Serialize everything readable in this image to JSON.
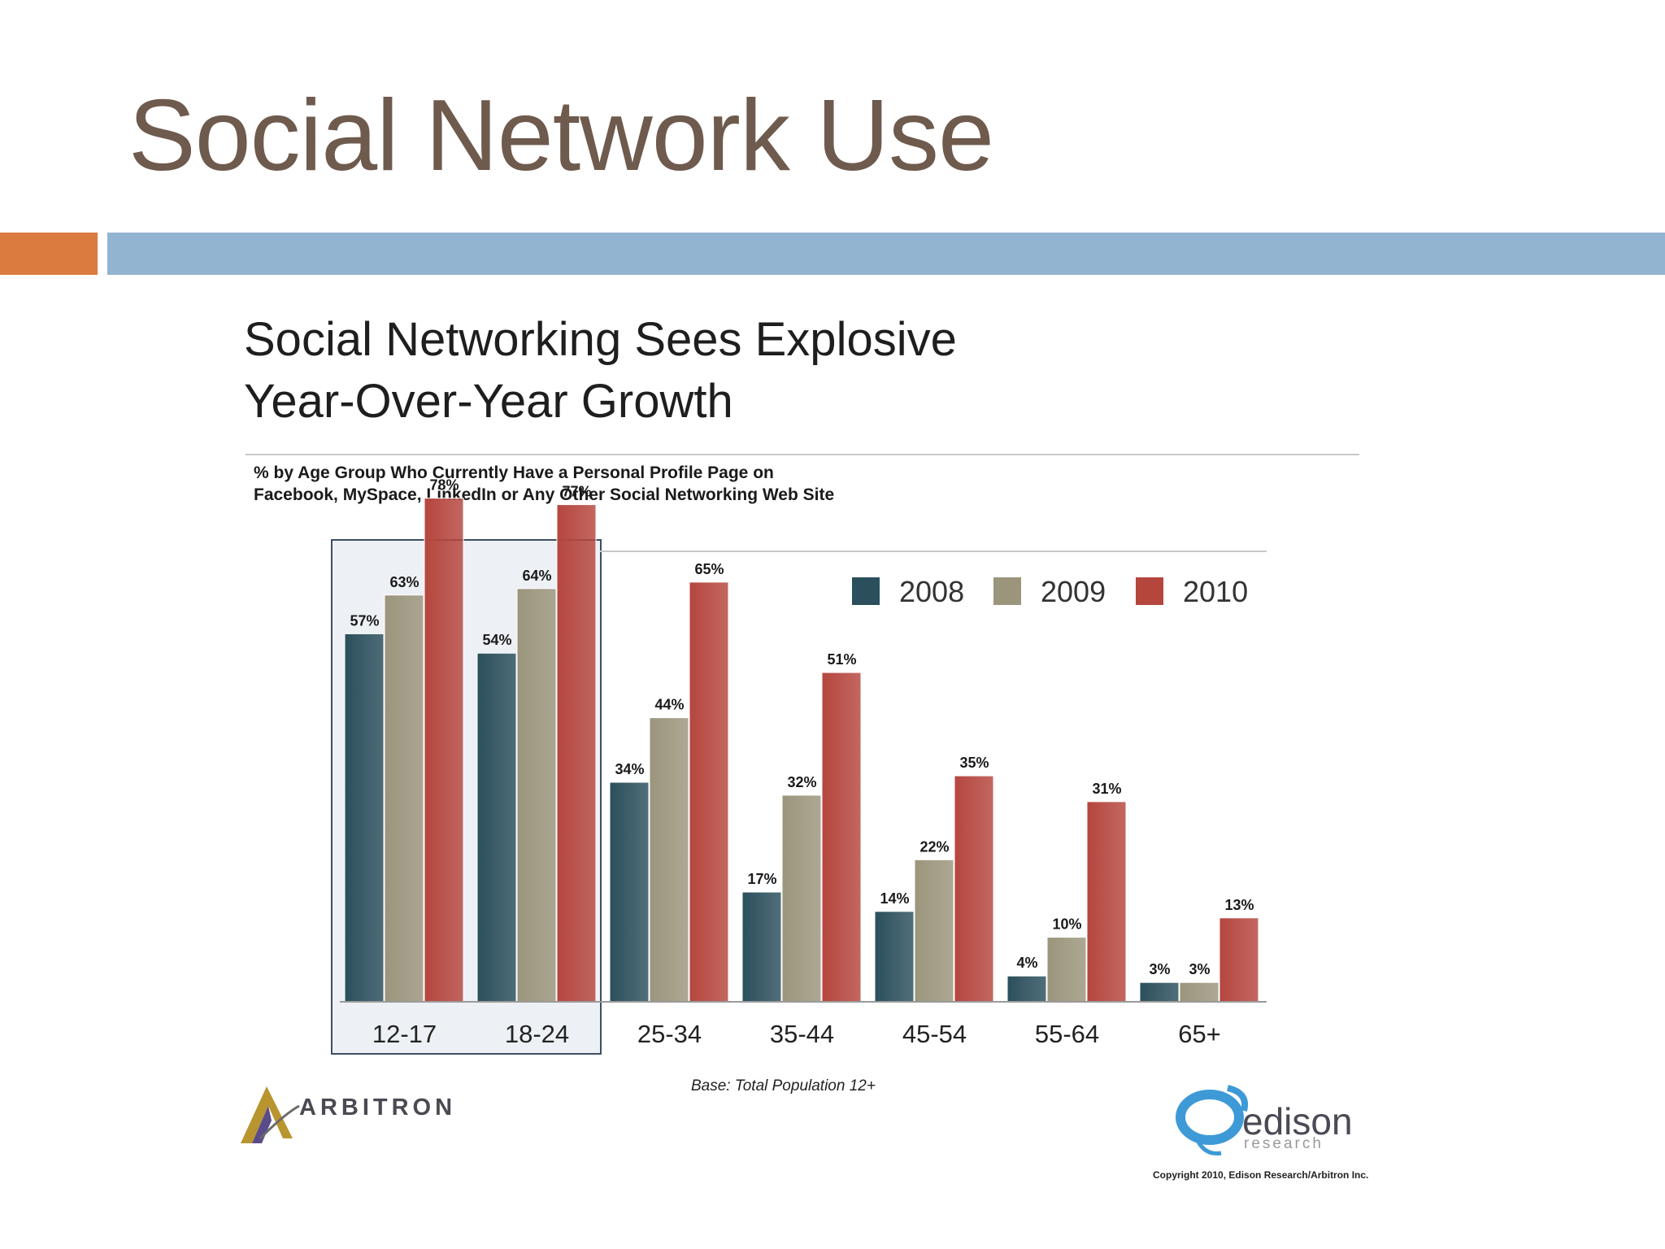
{
  "slide": {
    "title": "Social Network Use",
    "accent_orange": "#dc7b3f",
    "accent_blue": "#93b4d1"
  },
  "chart_data": {
    "type": "bar",
    "title_lines": [
      "Social Networking Sees Explosive",
      "Year-Over-Year Growth"
    ],
    "subtitle_lines": [
      "% by Age Group Who Currently Have a Personal Profile Page on",
      "Facebook, MySpace, LinkedIn or Any Other Social Networking Web Site"
    ],
    "categories": [
      "12-17",
      "18-24",
      "25-34",
      "35-44",
      "45-54",
      "55-64",
      "65+"
    ],
    "series": [
      {
        "name": "2008",
        "color": "#2b4f5c",
        "values": [
          57,
          54,
          34,
          17,
          14,
          4,
          3
        ]
      },
      {
        "name": "2009",
        "color": "#9b957c",
        "values": [
          63,
          64,
          44,
          32,
          22,
          10,
          3
        ]
      },
      {
        "name": "2010",
        "color": "#b5463e",
        "values": [
          78,
          77,
          65,
          51,
          35,
          31,
          13
        ]
      }
    ],
    "value_suffix": "%",
    "ylim": [
      0,
      80
    ],
    "highlighted_categories": [
      "12-17",
      "18-24"
    ],
    "legend_position": "top-right",
    "grid": false,
    "base_note": "Base: Total Population 12+"
  },
  "logos": {
    "arbitron": "ARBITRON",
    "edison": "edison",
    "edison_sub": "research"
  },
  "copyright": "Copyright 2010, Edison Research/Arbitron Inc."
}
